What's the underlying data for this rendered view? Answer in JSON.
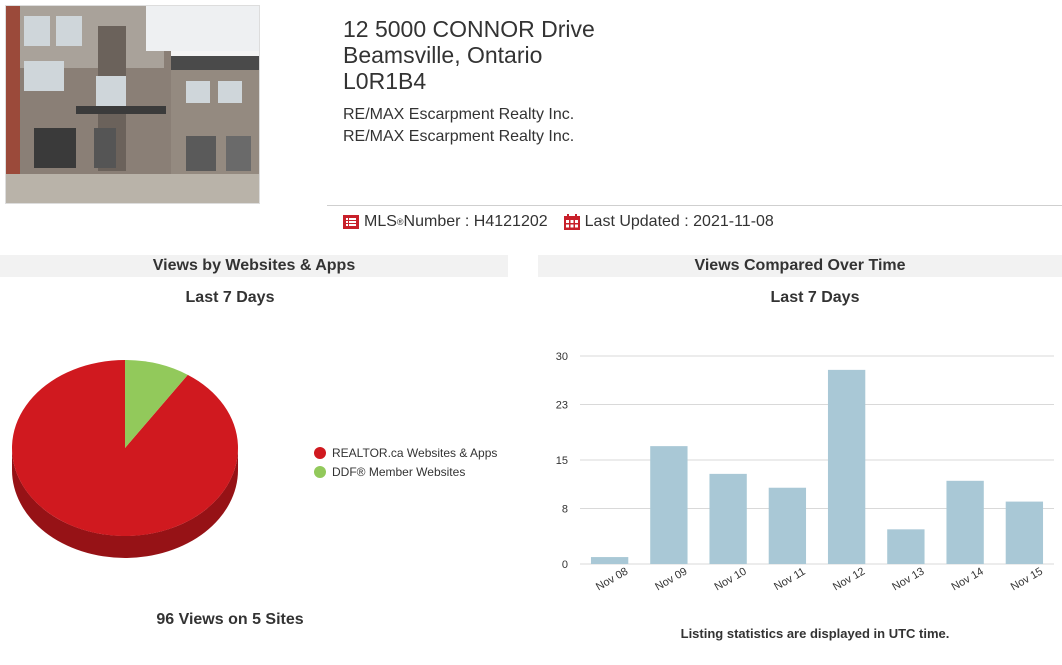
{
  "listing": {
    "address_line1": "12 5000 CONNOR Drive",
    "address_line2": "Beamsville, Ontario",
    "address_line3": "L0R1B4",
    "broker1": "RE/MAX Escarpment Realty Inc.",
    "broker2": "RE/MAX Escarpment Realty Inc."
  },
  "mls": {
    "label": "MLS",
    "reg": "®",
    "number_text": " Number : H4121202",
    "updated_text": "Last Updated : 2021-11-08"
  },
  "left_panel": {
    "heading": "Views by Websites & Apps",
    "subheading": "Last 7 Days",
    "footer": "96 Views on 5 Sites"
  },
  "right_panel": {
    "heading": "Views Compared Over Time",
    "subheading": "Last 7 Days",
    "footer": "Listing statistics are displayed in UTC time."
  },
  "colors": {
    "brand_red": "#c8202a",
    "pie_red": "#d0191f",
    "pie_green": "#92c95b",
    "bar_blue": "#a9c8d6"
  },
  "chart_data": [
    {
      "type": "pie",
      "series": [
        {
          "name": "REALTOR.ca Websites & Apps",
          "value": 87,
          "color": "#d0191f"
        },
        {
          "name": "DDF® Member Websites",
          "value": 9,
          "color": "#92c95b"
        }
      ],
      "legend_position": "right"
    },
    {
      "type": "bar",
      "categories": [
        "Nov 08",
        "Nov 09",
        "Nov 10",
        "Nov 11",
        "Nov 12",
        "Nov 13",
        "Nov 14",
        "Nov 15"
      ],
      "values": [
        1,
        17,
        13,
        11,
        28,
        5,
        12,
        9
      ],
      "yticks": [
        0,
        8,
        15,
        23,
        30
      ],
      "ylim": [
        0,
        30
      ],
      "grid": true
    }
  ]
}
